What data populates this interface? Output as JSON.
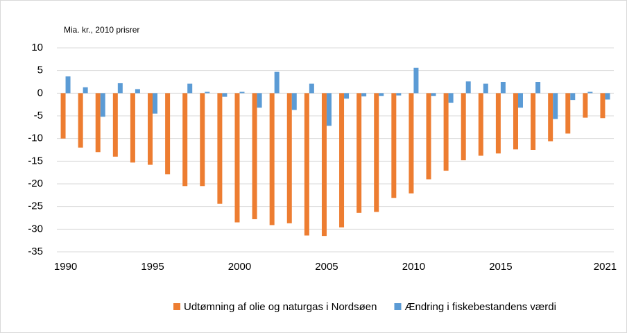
{
  "chart_data": {
    "type": "bar",
    "y_label": "Mia. kr., 2010 prisrer",
    "categories": [
      1990,
      null,
      null,
      null,
      null,
      1995,
      null,
      null,
      null,
      null,
      2000,
      null,
      null,
      null,
      null,
      2005,
      null,
      null,
      null,
      null,
      2010,
      null,
      null,
      null,
      null,
      2015,
      null,
      null,
      null,
      null,
      null,
      2021
    ],
    "series": [
      {
        "name": "Udtømning af olie og naturgas i Nordsøen",
        "color": "#ed7d31",
        "values": [
          -10,
          -12,
          -13,
          -14,
          -15.3,
          -15.8,
          -17.9,
          -20.5,
          -20.5,
          -24.4,
          -28.5,
          -27.8,
          -29.1,
          -28.7,
          -31.4,
          -31.5,
          -29.6,
          -26.4,
          -26.2,
          -23.1,
          -22.1,
          -19,
          -17.1,
          -14.8,
          -13.8,
          -13.3,
          -12.4,
          -12.5,
          -10.6,
          -8.9,
          -5.4,
          -5.5
        ]
      },
      {
        "name": "Ændring i fiskebestandens værdi",
        "color": "#5b9bd5",
        "values": [
          3.7,
          1.3,
          -5.2,
          2.2,
          0.9,
          -4.5,
          0,
          2.1,
          0.3,
          -0.8,
          0.3,
          -3.2,
          4.7,
          -3.7,
          2.1,
          -7.2,
          -1.2,
          -0.7,
          -0.6,
          -0.5,
          5.6,
          -0.6,
          -2.1,
          2.6,
          2.1,
          2.5,
          -3.2,
          2.5,
          -5.7,
          -1.5,
          0.3,
          -1.4
        ]
      }
    ],
    "ylim": [
      -35,
      10
    ],
    "yticks": [
      -35,
      -30,
      -25,
      -20,
      -15,
      -10,
      -5,
      0,
      5,
      10
    ],
    "grid": true,
    "legend": "bottom"
  }
}
